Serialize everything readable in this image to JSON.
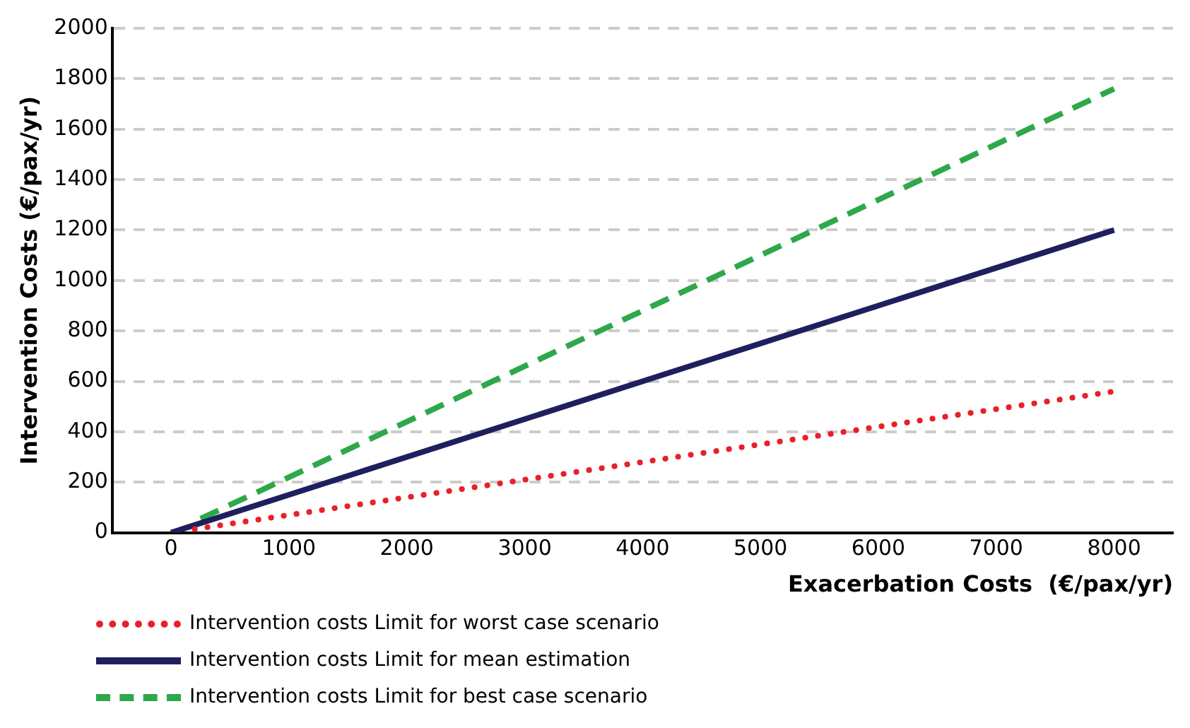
{
  "chart_data": {
    "type": "line",
    "xlabel": "Exacerbation Costs  (€/pax/yr)",
    "ylabel": "Intervention Costs (€/pax/yr)",
    "xlim": [
      -500,
      8500
    ],
    "xticks": [
      0,
      1000,
      2000,
      3000,
      4000,
      5000,
      6000,
      7000,
      8000
    ],
    "ylim": [
      0,
      2000
    ],
    "yticks": [
      0,
      200,
      400,
      600,
      800,
      1000,
      1200,
      1400,
      1600,
      1800,
      2000
    ],
    "grid": "y",
    "legend": "bottom left",
    "marker": "none",
    "series": [
      {
        "name": "Intervention costs Limit for worst case scenario",
        "color": "#e8202a",
        "line_style": "dotted",
        "x": [
          200,
          8000
        ],
        "values": [
          14,
          560
        ]
      },
      {
        "name": "Intervention costs Limit for mean estimation",
        "color": "#1f1f5e",
        "line_style": "solid",
        "x": [
          0,
          8000
        ],
        "values": [
          0,
          1200
        ]
      },
      {
        "name": "Intervention costs Limit for best case scenario",
        "color": "#2ea84a",
        "line_style": "dashed",
        "x": [
          250,
          8000
        ],
        "values": [
          55,
          1760
        ]
      }
    ]
  }
}
